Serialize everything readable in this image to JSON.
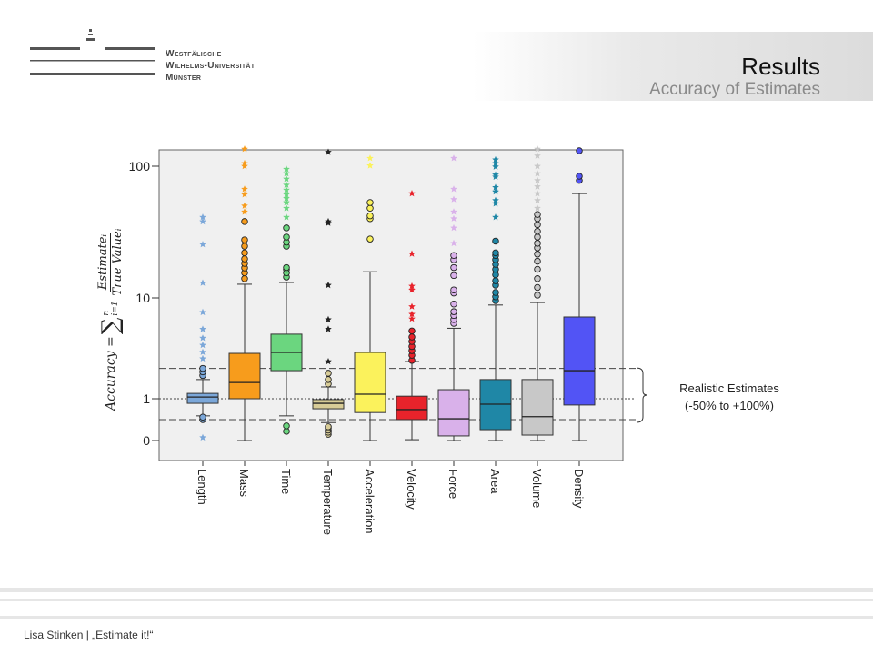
{
  "header": {
    "title": "Results",
    "subtitle": "Accuracy of Estimates"
  },
  "logo": {
    "line1": "Westfälische",
    "line2": "Wilhelms-Universität",
    "line3": "Münster"
  },
  "footer": {
    "text": "Lisa Stinken | „Estimate it!“"
  },
  "annotation": {
    "line1": "Realistic Estimates",
    "line2": "(-50% to +100%)"
  },
  "ylabel": {
    "lhs": "Accuracy =",
    "sum": "∑",
    "upper": "n",
    "lower": "i=1",
    "numerator": "Estimateᵢ",
    "denominator": "True Valueᵢ"
  },
  "chart_data": {
    "type": "boxplot",
    "ylabel": "Accuracy = Σ_{i=1}^{n} Estimate_i / True Value_i",
    "y_ticks": [
      0,
      1,
      10,
      100
    ],
    "y_tick_labels": [
      "0",
      "1",
      "10",
      "100"
    ],
    "reference_lines": [
      {
        "value": 1,
        "style": "dotted"
      },
      {
        "value": 0.5,
        "style": "dashed"
      },
      {
        "value": 2,
        "style": "dashed"
      }
    ],
    "categories": [
      "Length",
      "Mass",
      "Time",
      "Temperature",
      "Acceleration",
      "Velocity",
      "Force",
      "Area",
      "Volume",
      "Density"
    ],
    "colors": [
      "#7ba7d9",
      "#f79c1c",
      "#6bd67f",
      "#d8cc97",
      "#fbf25c",
      "#e8232b",
      "#d9b1ea",
      "#1f87a6",
      "#c8c8c8",
      "#5254f5"
    ],
    "boxes": [
      {
        "min": 0.59,
        "q1": 0.89,
        "median": 1.04,
        "q3": 1.13,
        "max": 1.55,
        "circles": [
          0.5,
          0.56,
          1.7,
          1.85,
          2.0
        ],
        "stars": [
          0.07,
          2.5,
          2.9,
          3.4,
          4.0,
          4.9,
          7.2,
          13,
          25.5,
          38,
          41
        ]
      },
      {
        "min": 0,
        "q1": 1.0,
        "median": 1.45,
        "q3": 2.82,
        "max": 12.7,
        "circles": [
          14,
          15.5,
          16.9,
          18.3,
          19.8,
          22,
          24.7,
          27.6,
          38
        ],
        "stars": [
          45,
          50,
          61,
          67,
          100,
          105,
          135
        ]
      },
      {
        "min": 0.59,
        "q1": 1.9,
        "median": 2.88,
        "q3": 4.37,
        "max": 13.1,
        "circles": [
          0.22,
          0.35,
          14.4,
          15.5,
          16.5,
          17,
          24.7,
          26.5,
          29,
          34
        ],
        "stars": [
          41,
          48,
          53,
          57,
          61,
          66,
          72,
          80,
          88,
          95
        ]
      },
      {
        "min": 0.43,
        "q1": 0.76,
        "median": 0.89,
        "q3": 0.98,
        "max": 1.31,
        "circles": [
          0.15,
          0.2,
          0.25,
          0.3,
          0.33,
          1.4,
          1.55,
          1.79
        ],
        "stars": [
          2.34,
          4.9,
          6.1,
          12.5,
          37,
          38,
          128
        ]
      },
      {
        "min": 0,
        "q1": 0.67,
        "median": 1.11,
        "q3": 2.88,
        "max": 15.8,
        "circles": [
          28,
          40,
          42,
          48,
          53
        ],
        "stars": [
          101,
          115
        ]
      },
      {
        "min": 0.02,
        "q1": 0.5,
        "median": 0.74,
        "q3": 1.06,
        "max": 2.34,
        "circles": [
          2.4,
          2.7,
          3.0,
          3.3,
          3.7,
          4.1,
          4.7
        ],
        "stars": [
          6.2,
          6.9,
          8.2,
          11.5,
          12.3,
          21.6,
          62
        ]
      },
      {
        "min": 0,
        "q1": 0.11,
        "median": 0.52,
        "q3": 1.23,
        "max": 5.0,
        "circles": [
          5.6,
          6.1,
          6.7,
          7.3,
          8.7,
          10.9,
          11.5,
          14.8,
          17,
          19.5,
          21
        ],
        "stars": [
          26,
          34,
          40,
          45,
          56,
          67,
          115
        ]
      },
      {
        "min": 0,
        "q1": 0.26,
        "median": 0.87,
        "q3": 1.55,
        "max": 8.5,
        "circles": [
          9.4,
          10.2,
          11,
          12.5,
          13.5,
          15,
          16.5,
          18,
          19.5,
          21,
          22,
          27
        ],
        "stars": [
          41,
          52,
          55,
          64,
          69,
          83,
          86,
          99,
          105,
          112
        ]
      },
      {
        "min": 0,
        "q1": 0.13,
        "median": 0.57,
        "q3": 1.55,
        "max": 9.0,
        "circles": [
          10.5,
          12,
          14,
          16.5,
          19,
          21.5,
          24,
          26,
          29,
          32,
          36,
          40,
          43
        ],
        "stars": [
          48,
          55,
          62,
          70,
          78,
          88,
          100,
          120,
          135
        ]
      },
      {
        "min": 0,
        "q1": 0.85,
        "median": 1.9,
        "q3": 6.47,
        "max": 62,
        "circles": [
          78,
          84,
          131
        ],
        "stars": []
      }
    ]
  }
}
